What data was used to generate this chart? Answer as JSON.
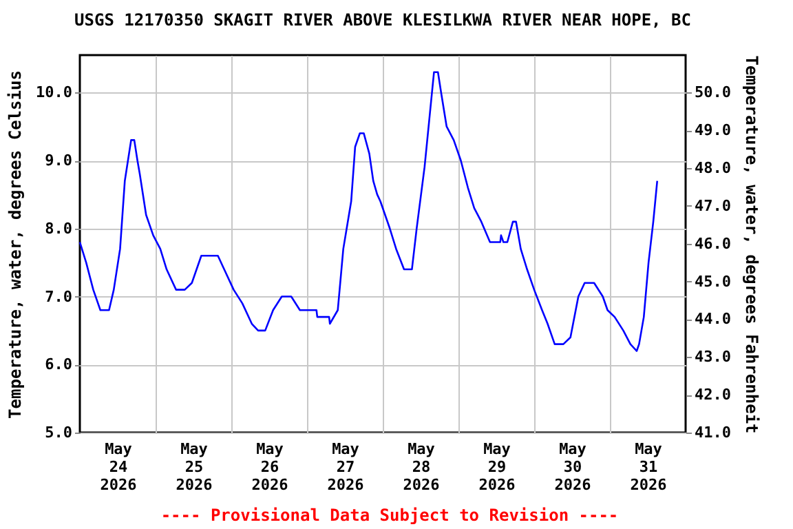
{
  "chart_data": {
    "type": "line",
    "title": "USGS 12170350 SKAGIT RIVER ABOVE KLESILKWA RIVER NEAR HOPE, BC",
    "ylabel": "Temperature, water, degrees Celsius",
    "y2label": "Temperature, water, degrees Fahrenheit",
    "annotations": [
      "---- Provisional Data Subject to Revision ----"
    ],
    "x": [
      "2026-05-24T00:00",
      "2026-05-24T02:00",
      "2026-05-24T04:15",
      "2026-05-24T06:30",
      "2026-05-24T09:15",
      "2026-05-24T10:45",
      "2026-05-24T12:45",
      "2026-05-24T14:15",
      "2026-05-24T16:15",
      "2026-05-24T17:15",
      "2026-05-24T18:15",
      "2026-05-24T19:00",
      "2026-05-24T21:00",
      "2026-05-24T23:15",
      "2026-05-25T01:30",
      "2026-05-25T03:30",
      "2026-05-25T06:30",
      "2026-05-25T09:15",
      "2026-05-25T11:30",
      "2026-05-25T14:30",
      "2026-05-25T19:45",
      "2026-05-25T21:45",
      "2026-05-26T00:45",
      "2026-05-26T03:30",
      "2026-05-26T06:30",
      "2026-05-26T08:30",
      "2026-05-26T10:45",
      "2026-05-26T13:15",
      "2026-05-26T16:00",
      "2026-05-26T19:00",
      "2026-05-26T21:45",
      "2026-05-27T03:00",
      "2026-05-27T03:15",
      "2026-05-27T07:00",
      "2026-05-27T07:15",
      "2026-05-27T09:45",
      "2026-05-27T11:30",
      "2026-05-27T14:00",
      "2026-05-27T15:15",
      "2026-05-27T16:45",
      "2026-05-27T18:00",
      "2026-05-27T19:45",
      "2026-05-27T21:00",
      "2026-05-27T22:15",
      "2026-05-27T23:15",
      "2026-05-28T02:15",
      "2026-05-28T04:15",
      "2026-05-28T06:45",
      "2026-05-28T09:15",
      "2026-05-28T10:45",
      "2026-05-28T13:15",
      "2026-05-28T14:45",
      "2026-05-28T16:15",
      "2026-05-28T17:30",
      "2026-05-28T18:30",
      "2026-05-28T20:15",
      "2026-05-28T22:30",
      "2026-05-29T00:45",
      "2026-05-29T03:00",
      "2026-05-29T05:00",
      "2026-05-29T07:15",
      "2026-05-29T10:00",
      "2026-05-29T13:15",
      "2026-05-29T13:30",
      "2026-05-29T14:15",
      "2026-05-29T15:30",
      "2026-05-29T17:15",
      "2026-05-29T18:15",
      "2026-05-29T19:45",
      "2026-05-29T21:45",
      "2026-05-30T00:00",
      "2026-05-30T02:30",
      "2026-05-30T04:15",
      "2026-05-30T06:30",
      "2026-05-30T09:15",
      "2026-05-30T11:30",
      "2026-05-30T14:00",
      "2026-05-30T16:00",
      "2026-05-30T19:00",
      "2026-05-30T21:45",
      "2026-05-30T23:15",
      "2026-05-31T01:30",
      "2026-05-31T04:15",
      "2026-05-31T06:30",
      "2026-05-31T08:30",
      "2026-05-31T09:15",
      "2026-05-31T10:45",
      "2026-05-31T12:15",
      "2026-05-31T13:45",
      "2026-05-31T15:00"
    ],
    "series": [
      {
        "color": "#0000ff",
        "values": [
          7.8,
          7.5,
          7.1,
          6.8,
          6.8,
          7.1,
          7.7,
          8.7,
          9.3,
          9.3,
          9.0,
          8.8,
          8.2,
          7.9,
          7.7,
          7.4,
          7.1,
          7.1,
          7.2,
          7.6,
          7.6,
          7.4,
          7.1,
          6.9,
          6.6,
          6.5,
          6.5,
          6.8,
          7.0,
          7.0,
          6.8,
          6.8,
          6.7,
          6.7,
          6.6,
          6.8,
          7.7,
          8.4,
          9.2,
          9.4,
          9.4,
          9.1,
          8.7,
          8.5,
          8.4,
          8.0,
          7.7,
          7.4,
          7.4,
          8.0,
          8.9,
          9.6,
          10.3,
          10.3,
          10.0,
          9.5,
          9.3,
          9.0,
          8.6,
          8.3,
          8.1,
          7.8,
          7.8,
          7.9,
          7.8,
          7.8,
          8.1,
          8.1,
          7.7,
          7.4,
          7.1,
          6.8,
          6.6,
          6.3,
          6.3,
          6.4,
          7.0,
          7.2,
          7.2,
          7.0,
          6.8,
          6.7,
          6.5,
          6.3,
          6.2,
          6.3,
          6.7,
          7.5,
          8.1,
          8.7
        ]
      }
    ],
    "xlim": [
      "2026-05-24T00:00",
      "2026-06-01T00:00"
    ],
    "xticks": [
      {
        "value": "2026-05-24T12:00",
        "label": "May 24 2026"
      },
      {
        "value": "2026-05-25T00:00",
        "label": null
      },
      {
        "value": "2026-05-25T12:00",
        "label": "May 25 2026"
      },
      {
        "value": "2026-05-26T00:00",
        "label": null
      },
      {
        "value": "2026-05-26T12:00",
        "label": "May 26 2026"
      },
      {
        "value": "2026-05-27T00:00",
        "label": null
      },
      {
        "value": "2026-05-27T12:00",
        "label": "May 27 2026"
      },
      {
        "value": "2026-05-28T00:00",
        "label": null
      },
      {
        "value": "2026-05-28T12:00",
        "label": "May 28 2026"
      },
      {
        "value": "2026-05-29T00:00",
        "label": null
      },
      {
        "value": "2026-05-29T12:00",
        "label": "May 29 2026"
      },
      {
        "value": "2026-05-30T00:00",
        "label": null
      },
      {
        "value": "2026-05-30T12:00",
        "label": "May 30 2026"
      },
      {
        "value": "2026-05-31T00:00",
        "label": null
      },
      {
        "value": "2026-05-31T12:00",
        "label": "May 31 2026"
      }
    ],
    "ylim": [
      5,
      10.55
    ],
    "yticks": [
      {
        "value": 5,
        "label": "5.0"
      },
      {
        "value": 6,
        "label": "6.0"
      },
      {
        "value": 7,
        "label": "7.0"
      },
      {
        "value": 8,
        "label": "8.0"
      },
      {
        "value": 9,
        "label": "9.0"
      },
      {
        "value": 10,
        "label": "10.0"
      }
    ],
    "y2lim": [
      41,
      50.99
    ],
    "y2ticks": [
      {
        "value": 41,
        "label": "41.0"
      },
      {
        "value": 42,
        "label": "42.0"
      },
      {
        "value": 43,
        "label": "43.0"
      },
      {
        "value": 44,
        "label": "44.0"
      },
      {
        "value": 45,
        "label": "45.0"
      },
      {
        "value": 46,
        "label": "46.0"
      },
      {
        "value": 47,
        "label": "47.0"
      },
      {
        "value": 48,
        "label": "48.0"
      },
      {
        "value": 49,
        "label": "49.0"
      },
      {
        "value": 50,
        "label": "50.0"
      }
    ],
    "grid": true,
    "line_style": "solid"
  }
}
